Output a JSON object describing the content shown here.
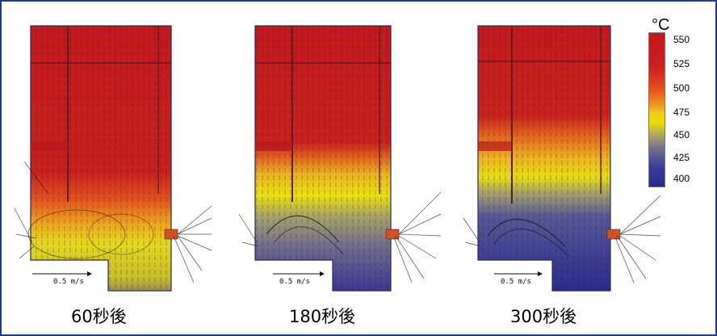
{
  "legend": {
    "unit": "°C",
    "ticks": [
      "550",
      "525",
      "500",
      "475",
      "450",
      "425",
      "400"
    ],
    "colors": [
      "#c0181e",
      "#e05020",
      "#ef9020",
      "#e8e000",
      "#b0a860",
      "#6e6a8e",
      "#262a8a"
    ]
  },
  "panels": [
    {
      "caption": "60秒後",
      "scale_label": "0.5 m/s",
      "hot_fraction": 0.55
    },
    {
      "caption": "180秒後",
      "scale_label": "0.5 m/s",
      "hot_fraction": 0.45
    },
    {
      "caption": "300秒後",
      "scale_label": "0.5 m/s",
      "hot_fraction": 0.35
    }
  ],
  "colors": {
    "border": "#1f3a93",
    "hot": "#c0181e",
    "cold": "#262a8a"
  }
}
